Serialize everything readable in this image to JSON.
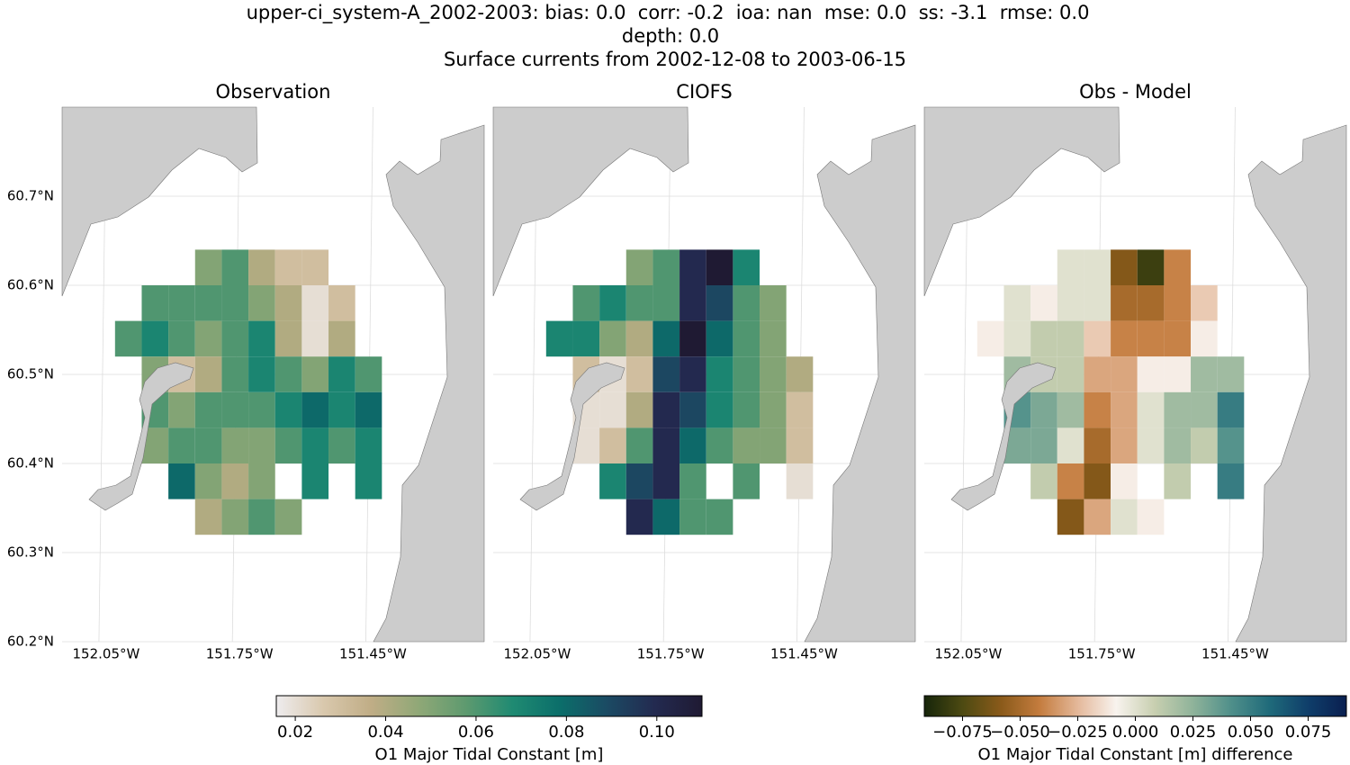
{
  "suptitle": [
    "upper-ci_system-A_2002-2003: bias: 0.0  corr: -0.2  ioa: nan  mse: 0.0  ss: -3.1  rmse: 0.0",
    "depth: 0.0",
    "Surface currents from 2002-12-08 to 2003-06-15"
  ],
  "chart_data": [
    {
      "type": "heatmap",
      "title": "Observation",
      "colorbar": 0,
      "x": [
        -152.0,
        -151.94,
        -151.88,
        -151.82,
        -151.76,
        -151.7,
        -151.64,
        -151.58,
        -151.52,
        -151.46,
        -151.4
      ],
      "y": [
        60.62,
        60.58,
        60.54,
        60.5,
        60.46,
        60.42,
        60.38,
        60.34
      ],
      "values": [
        [
          null,
          null,
          null,
          0.05,
          0.06,
          0.04,
          0.03,
          0.03,
          null,
          null,
          null
        ],
        [
          null,
          0.06,
          0.06,
          0.06,
          0.06,
          0.05,
          0.04,
          0.02,
          0.03,
          null,
          null
        ],
        [
          0.06,
          0.07,
          0.06,
          0.05,
          0.06,
          0.07,
          0.04,
          0.02,
          0.04,
          null,
          null
        ],
        [
          null,
          0.05,
          0.03,
          0.04,
          0.06,
          0.07,
          0.06,
          0.05,
          0.07,
          0.06,
          null
        ],
        [
          null,
          0.06,
          0.05,
          0.06,
          0.06,
          0.06,
          0.07,
          0.08,
          0.07,
          0.08,
          null
        ],
        [
          null,
          0.05,
          0.06,
          0.06,
          0.05,
          0.05,
          0.06,
          0.07,
          0.06,
          0.07,
          null
        ],
        [
          null,
          null,
          0.08,
          0.05,
          0.04,
          0.05,
          null,
          0.07,
          null,
          0.07,
          null
        ],
        [
          null,
          null,
          null,
          0.04,
          0.05,
          0.06,
          0.05,
          null,
          null,
          null,
          null
        ]
      ],
      "xlim": [
        -152.149,
        -151.2
      ],
      "ylim": [
        60.2,
        60.8
      ],
      "xticks": [
        {
          "value": -152.05,
          "label": "152.05°W"
        },
        {
          "value": -151.75,
          "label": "151.75°W"
        },
        {
          "value": -151.45,
          "label": "151.45°W"
        }
      ],
      "yticks": [
        {
          "value": 60.2,
          "label": "60.2°N"
        },
        {
          "value": 60.3,
          "label": "60.3°N"
        },
        {
          "value": 60.4,
          "label": "60.4°N"
        },
        {
          "value": 60.5,
          "label": "60.5°N"
        },
        {
          "value": 60.6,
          "label": "60.6°N"
        },
        {
          "value": 60.7,
          "label": "60.7°N"
        }
      ]
    },
    {
      "type": "heatmap",
      "title": "CIOFS",
      "colorbar": 0,
      "x": [
        -152.0,
        -151.94,
        -151.88,
        -151.82,
        -151.76,
        -151.7,
        -151.64,
        -151.58,
        -151.52,
        -151.46,
        -151.4
      ],
      "y": [
        60.62,
        60.58,
        60.54,
        60.5,
        60.46,
        60.42,
        60.38,
        60.34
      ],
      "values": [
        [
          null,
          null,
          null,
          0.05,
          0.06,
          0.1,
          0.11,
          0.07,
          null,
          null,
          null
        ],
        [
          null,
          0.06,
          0.07,
          0.06,
          0.06,
          0.1,
          0.09,
          0.06,
          0.05,
          null,
          null
        ],
        [
          0.07,
          0.07,
          0.05,
          0.04,
          0.08,
          0.11,
          0.08,
          0.06,
          0.05,
          null,
          null
        ],
        [
          null,
          0.03,
          0.02,
          0.03,
          0.09,
          0.1,
          0.07,
          0.06,
          0.05,
          0.04,
          null
        ],
        [
          null,
          0.02,
          0.02,
          0.04,
          0.1,
          0.09,
          0.07,
          0.06,
          0.05,
          0.03,
          null
        ],
        [
          null,
          0.02,
          0.03,
          0.06,
          0.1,
          0.08,
          0.06,
          0.05,
          0.05,
          0.03,
          null
        ],
        [
          null,
          null,
          0.07,
          0.09,
          0.1,
          0.06,
          null,
          0.06,
          null,
          0.02,
          null
        ],
        [
          null,
          null,
          null,
          0.1,
          0.08,
          0.06,
          0.06,
          null,
          null,
          null,
          null
        ]
      ],
      "xlim": [
        -152.149,
        -151.2
      ],
      "ylim": [
        60.2,
        60.8
      ],
      "xticks": [
        {
          "value": -152.05,
          "label": "152.05°W"
        },
        {
          "value": -151.75,
          "label": "151.75°W"
        },
        {
          "value": -151.45,
          "label": "151.45°W"
        }
      ]
    },
    {
      "type": "heatmap",
      "title": "Obs - Model",
      "colorbar": 1,
      "x": [
        -152.0,
        -151.94,
        -151.88,
        -151.82,
        -151.76,
        -151.7,
        -151.64,
        -151.58,
        -151.52,
        -151.46,
        -151.4
      ],
      "y": [
        60.62,
        60.58,
        60.54,
        60.5,
        60.46,
        60.42,
        60.38,
        60.34
      ],
      "values": [
        [
          null,
          null,
          null,
          0,
          0,
          -0.06,
          -0.08,
          -0.04,
          null,
          null,
          null
        ],
        [
          null,
          0,
          -0.01,
          0,
          0,
          -0.05,
          -0.05,
          -0.04,
          -0.02,
          null,
          null
        ],
        [
          -0.01,
          0,
          0.01,
          0.01,
          -0.02,
          -0.04,
          -0.04,
          -0.04,
          -0.01,
          null,
          null
        ],
        [
          null,
          0.02,
          0.01,
          0.01,
          -0.03,
          -0.03,
          -0.01,
          -0.01,
          0.02,
          0.02,
          null
        ],
        [
          null,
          0.04,
          0.03,
          0.02,
          -0.04,
          -0.03,
          0,
          0.02,
          0.02,
          0.05,
          null
        ],
        [
          null,
          0.03,
          0.03,
          0,
          -0.05,
          -0.03,
          0,
          0.02,
          0.01,
          0.04,
          null
        ],
        [
          null,
          null,
          0.01,
          -0.04,
          -0.06,
          -0.01,
          null,
          0.01,
          null,
          0.05,
          null
        ],
        [
          null,
          null,
          null,
          -0.06,
          -0.03,
          0,
          -0.01,
          null,
          null,
          null,
          null
        ]
      ],
      "xlim": [
        -152.149,
        -151.2
      ],
      "ylim": [
        60.2,
        60.8
      ],
      "xticks": [
        {
          "value": -152.05,
          "label": "152.05°W"
        },
        {
          "value": -151.75,
          "label": "151.75°W"
        },
        {
          "value": -151.45,
          "label": "151.45°W"
        }
      ]
    }
  ],
  "colorbars": [
    {
      "label": "O1 Major Tidal Constant [m]",
      "vlim": [
        0.0158,
        0.11
      ],
      "ticks": [
        0.02,
        0.04,
        0.06,
        0.08,
        {
          "value": 0.1,
          "label": "0.10"
        }
      ],
      "colormap": [
        "#eeecee",
        "#d9c8ad",
        "#c0ad86",
        "#90a877",
        "#5e9a6f",
        "#1f8a72",
        "#0b6e6a",
        "#1b4a63",
        "#232a50",
        "#1f1a33"
      ]
    },
    {
      "label": "O1 Major Tidal Constant [m] difference",
      "vlim": [
        -0.0916,
        0.0916
      ],
      "ticks": [
        {
          "value": -0.075,
          "label": "−0.075"
        },
        {
          "value": -0.05,
          "label": "−0.050"
        },
        {
          "value": -0.025,
          "label": "−0.025"
        },
        {
          "value": 0,
          "label": "0.000"
        },
        0.025,
        {
          "value": 0.05,
          "label": "0.050"
        },
        0.075
      ],
      "colormap": [
        "#16250a",
        "#4d4a12",
        "#8a5a1a",
        "#c47c3e",
        "#e4b89a",
        "#f8f3ee",
        "#c8cfb0",
        "#8fb39a",
        "#4f8f8a",
        "#1f6a7a",
        "#0f3e6a",
        "#0a1f50"
      ]
    }
  ]
}
